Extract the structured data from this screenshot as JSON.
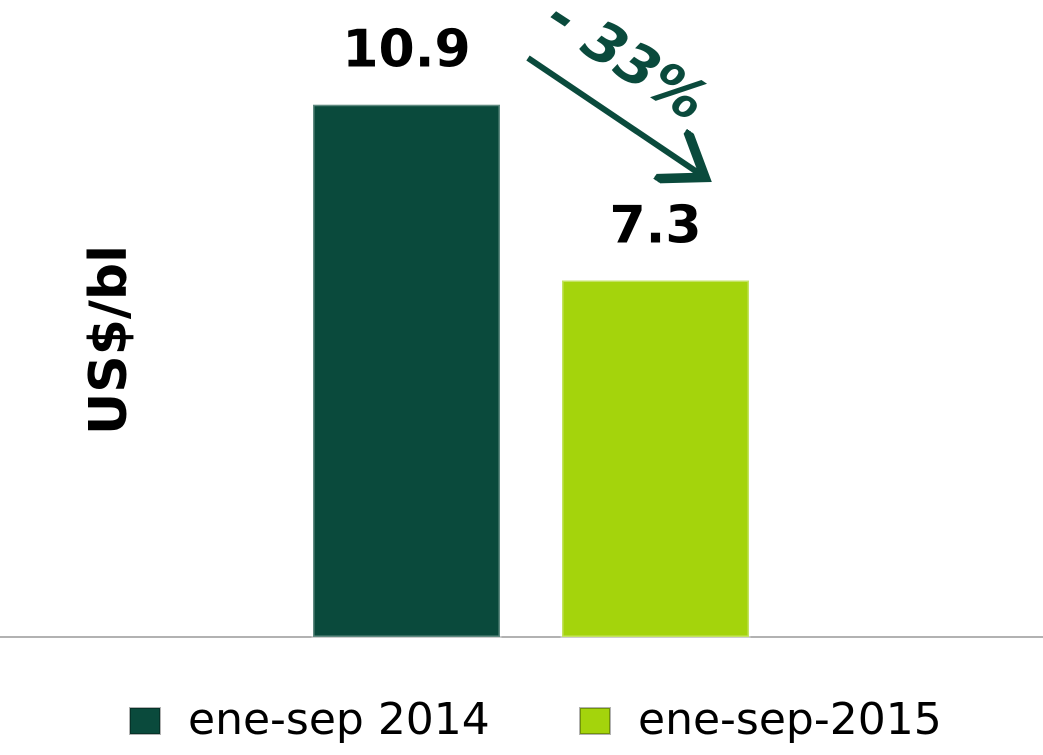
{
  "chart_data": {
    "type": "bar",
    "ylabel": "US$/bl",
    "annotation": "- 33%",
    "series": [
      {
        "name": "ene-sep 2014",
        "color": "#0a4a3c",
        "values": [
          10.9
        ]
      },
      {
        "name": "ene-sep-2015",
        "color": "#a4d40c",
        "values": [
          7.3
        ]
      }
    ],
    "ylim": [
      0,
      12
    ]
  }
}
